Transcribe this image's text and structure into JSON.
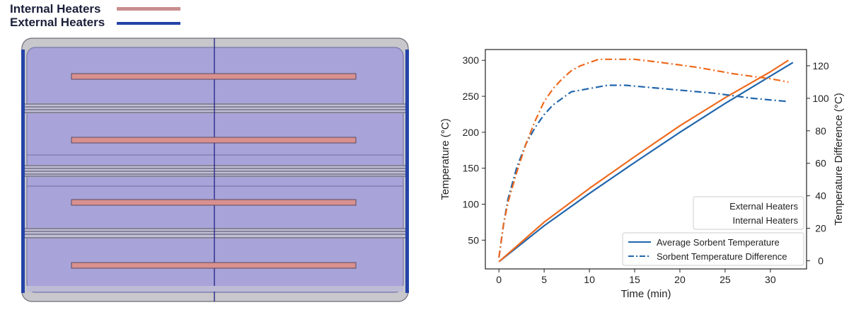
{
  "heater_legend": {
    "internal_label": "Internal Heaters",
    "external_label": "External Heaters",
    "internal_color": "#c98d8f",
    "external_color": "#2443a8"
  },
  "diagram": {
    "chamber_color": "#a8a4d9",
    "frame_color": "#c7c7cc",
    "heater_color": "#d9908e",
    "separator_color": "#4a4a55",
    "internal_heater_count": 4,
    "external_heater_count": 2
  },
  "colors": {
    "external_series": "#2166ac",
    "internal_series": "#ee6a1e"
  },
  "chart_data": {
    "type": "line",
    "xlabel": "Time (min)",
    "ylabel_left": "Temperature (°C)",
    "ylabel_right": "Temperature Difference (°C)",
    "xlim": [
      -1.5,
      34
    ],
    "ylim_left": [
      10,
      315
    ],
    "ylim_right": [
      -5,
      130
    ],
    "x_ticks": [
      0,
      5,
      10,
      15,
      20,
      25,
      30
    ],
    "y_ticks_left": [
      50,
      100,
      150,
      200,
      250,
      300
    ],
    "y_ticks_right": [
      0,
      20,
      40,
      60,
      80,
      100,
      120
    ],
    "legend": {
      "placement": "bottom-right",
      "heater_entries": [
        "External Heaters",
        "Internal Heaters"
      ],
      "style_entries": [
        {
          "label": "Average Sorbent Temperature",
          "style": "solid"
        },
        {
          "label": "Sorbent Temperature Difference",
          "style": "dashdot"
        }
      ]
    },
    "series": [
      {
        "heater": "External Heaters",
        "measure": "Average Sorbent Temperature",
        "axis": "left",
        "style": "solid",
        "color": "#2166ac",
        "x": [
          0,
          2,
          5,
          10,
          15,
          20,
          25,
          30,
          32.5
        ],
        "y": [
          20,
          40,
          70,
          115,
          158,
          200,
          240,
          278,
          297
        ]
      },
      {
        "heater": "Internal Heaters",
        "measure": "Average Sorbent Temperature",
        "axis": "left",
        "style": "solid",
        "color": "#ee6a1e",
        "x": [
          0,
          2,
          5,
          10,
          15,
          20,
          25,
          30,
          32
        ],
        "y": [
          20,
          42,
          75,
          122,
          166,
          209,
          248,
          284,
          300
        ]
      },
      {
        "heater": "External Heaters",
        "measure": "Sorbent Temperature Difference",
        "axis": "right",
        "style": "dashdot",
        "color": "#2166ac",
        "x": [
          0,
          0.5,
          1,
          2,
          3,
          4,
          5,
          6,
          7,
          8,
          9,
          10,
          11,
          12,
          14,
          16,
          20,
          24,
          28,
          32
        ],
        "y": [
          2,
          22,
          38,
          58,
          72,
          82,
          90,
          96,
          100,
          104,
          105,
          106,
          107,
          108,
          108,
          107,
          105,
          103,
          100,
          98
        ]
      },
      {
        "heater": "Internal Heaters",
        "measure": "Sorbent Temperature Difference",
        "axis": "right",
        "style": "dashdot",
        "color": "#ee6a1e",
        "x": [
          0,
          0.5,
          1,
          2,
          3,
          4,
          5,
          6,
          7,
          8,
          9,
          10,
          11,
          12,
          13,
          14,
          15,
          18,
          22,
          26,
          30,
          32
        ],
        "y": [
          2,
          22,
          36,
          55,
          72,
          86,
          98,
          106,
          112,
          117,
          120,
          122,
          124,
          124,
          124,
          124,
          124,
          122,
          119,
          115,
          112,
          110
        ]
      }
    ]
  }
}
